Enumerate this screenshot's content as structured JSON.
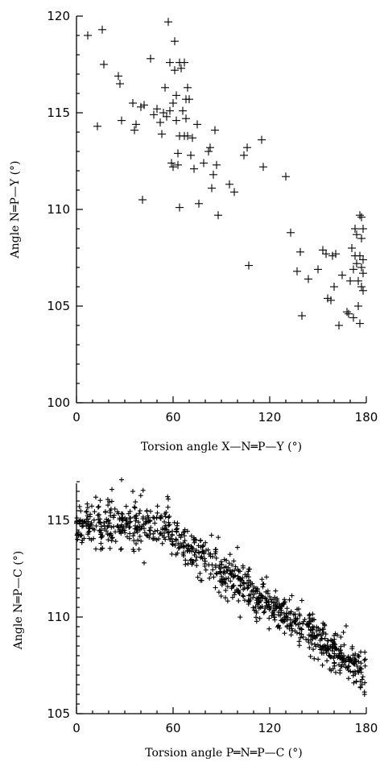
{
  "chart_data": [
    {
      "type": "scatter",
      "title": "",
      "xlabel": "Torsion angle X—N═P—Y (°)",
      "ylabel": "Angle N═P—Y (°)",
      "xlim": [
        0,
        180
      ],
      "ylim": [
        100,
        120
      ],
      "xticks": [
        0,
        60,
        120,
        180
      ],
      "yticks": [
        100,
        105,
        110,
        115,
        120
      ],
      "grid": false,
      "legend": "none",
      "marker": "plus",
      "points": [
        [
          7,
          119
        ],
        [
          16,
          119.3
        ],
        [
          17,
          117.5
        ],
        [
          13,
          114.3
        ],
        [
          26,
          116.9
        ],
        [
          27,
          116.5
        ],
        [
          28,
          114.6
        ],
        [
          35,
          115.5
        ],
        [
          37,
          114.4
        ],
        [
          36,
          114.1
        ],
        [
          40,
          115.3
        ],
        [
          42,
          115.4
        ],
        [
          41,
          110.5
        ],
        [
          46,
          117.8
        ],
        [
          48,
          114.9
        ],
        [
          50,
          115.2
        ],
        [
          52,
          114.5
        ],
        [
          53,
          113.9
        ],
        [
          54,
          115.0
        ],
        [
          55,
          116.3
        ],
        [
          56,
          114.8
        ],
        [
          57,
          119.7
        ],
        [
          58,
          117.6
        ],
        [
          58,
          115.1
        ],
        [
          59,
          112.4
        ],
        [
          60,
          115.5
        ],
        [
          60,
          112.2
        ],
        [
          61,
          118.7
        ],
        [
          61,
          117.2
        ],
        [
          62,
          115.9
        ],
        [
          62,
          114.6
        ],
        [
          63,
          112.9
        ],
        [
          63,
          112.3
        ],
        [
          64,
          117.6
        ],
        [
          64,
          113.8
        ],
        [
          65,
          117.3
        ],
        [
          66,
          115.1
        ],
        [
          64,
          110.1
        ],
        [
          67,
          117.6
        ],
        [
          67,
          113.8
        ],
        [
          68,
          115.7
        ],
        [
          68,
          114.7
        ],
        [
          69,
          116.3
        ],
        [
          69,
          113.8
        ],
        [
          70,
          115.7
        ],
        [
          71,
          112.8
        ],
        [
          72,
          113.7
        ],
        [
          73,
          112.1
        ],
        [
          75,
          114.4
        ],
        [
          76,
          110.3
        ],
        [
          79,
          112.4
        ],
        [
          82,
          113.0
        ],
        [
          83,
          113.2
        ],
        [
          84,
          111.1
        ],
        [
          85,
          111.8
        ],
        [
          86,
          114.1
        ],
        [
          87,
          112.3
        ],
        [
          88,
          109.7
        ],
        [
          95,
          111.3
        ],
        [
          98,
          110.9
        ],
        [
          104,
          112.8
        ],
        [
          106,
          113.2
        ],
        [
          107,
          107.1
        ],
        [
          115,
          113.6
        ],
        [
          116,
          112.2
        ],
        [
          130,
          111.7
        ],
        [
          133,
          108.8
        ],
        [
          137,
          106.8
        ],
        [
          139,
          107.8
        ],
        [
          140,
          104.5
        ],
        [
          144,
          106.4
        ],
        [
          150,
          106.9
        ],
        [
          153,
          107.9
        ],
        [
          155,
          107.7
        ],
        [
          156,
          105.4
        ],
        [
          158,
          105.3
        ],
        [
          159,
          107.6
        ],
        [
          160,
          106.0
        ],
        [
          161,
          107.7
        ],
        [
          163,
          104.0
        ],
        [
          165,
          106.6
        ],
        [
          168,
          104.7
        ],
        [
          169,
          104.6
        ],
        [
          170,
          106.3
        ],
        [
          171,
          108.0
        ],
        [
          172,
          106.9
        ],
        [
          172,
          104.4
        ],
        [
          173,
          107.6
        ],
        [
          173,
          109.0
        ],
        [
          174,
          107.2
        ],
        [
          174,
          108.7
        ],
        [
          175,
          106.3
        ],
        [
          175,
          105.0
        ],
        [
          176,
          109.7
        ],
        [
          176,
          107.6
        ],
        [
          176,
          104.1
        ],
        [
          177,
          109.6
        ],
        [
          177,
          108.5
        ],
        [
          177,
          107.0
        ],
        [
          177,
          106.0
        ],
        [
          178,
          107.4
        ],
        [
          178,
          106.7
        ],
        [
          178,
          105.8
        ],
        [
          178,
          109.0
        ]
      ]
    },
    {
      "type": "scatter",
      "title": "",
      "xlabel": "Torsion angle P═N═P—C (°)",
      "ylabel": "Angle N═P—C (°)",
      "xlim": [
        0,
        180
      ],
      "ylim": [
        105,
        117
      ],
      "xticks": [
        0,
        60,
        120,
        180
      ],
      "yticks": [
        105,
        110,
        115
      ],
      "grid": false,
      "legend": "none",
      "marker": "plus",
      "trend": {
        "x0": 0,
        "y0": 114.9,
        "x1": 180,
        "y1": 107.0,
        "curve": 0.55,
        "spread": 0.55,
        "n": 900,
        "seed": 7
      },
      "outliers": [
        [
          28,
          117.1
        ],
        [
          12,
          116.2
        ],
        [
          57,
          116.1
        ],
        [
          58,
          114.0
        ],
        [
          42,
          112.8
        ],
        [
          100,
          113.6
        ],
        [
          137,
          110.4
        ],
        [
          160,
          108.5
        ],
        [
          35,
          116.5
        ],
        [
          22,
          116.6
        ]
      ]
    }
  ]
}
